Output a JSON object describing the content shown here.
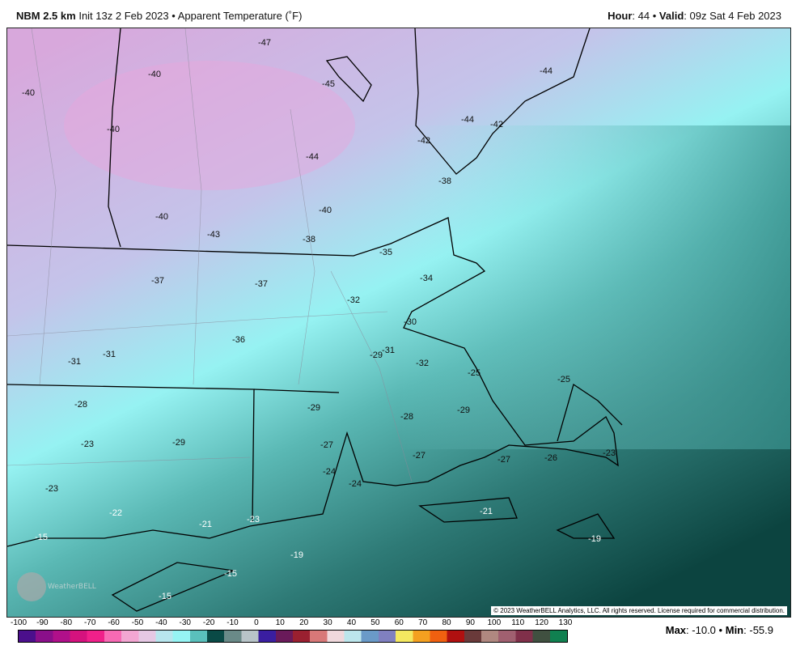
{
  "header": {
    "model": "NBM 2.5 km",
    "init": "Init 13z 2 Feb 2023",
    "sep": "•",
    "field": "Apparent Temperature (˚F)",
    "hour_label": "Hour",
    "hour": "44",
    "valid_label": "Valid",
    "valid": "09z Sat 4 Feb 2023"
  },
  "map": {
    "labels": [
      "-47",
      "-40",
      "-45",
      "-44",
      "-40",
      "-40",
      "-44",
      "-42",
      "-42",
      "-44",
      "-38",
      "-40",
      "-40",
      "-43",
      "-38",
      "-35",
      "-37",
      "-37",
      "-34",
      "-32",
      "-30",
      "-36",
      "-31",
      "-31",
      "-29",
      "-31",
      "-32",
      "-25",
      "-25",
      "-28",
      "-29",
      "-29",
      "-28",
      "-23",
      "-29",
      "-27",
      "-27",
      "-27",
      "-26",
      "-23",
      "-24",
      "-24",
      "-23",
      "-22",
      "-21",
      "-21",
      "-23",
      "-15",
      "-19",
      "-19",
      "-15",
      "-15"
    ],
    "copyright": "© 2023 WeatherBELL Analytics, LLC. All rights reserved. License required for commercial distribution.",
    "logo": "WeatherBELL"
  },
  "colorbar": {
    "ticks": [
      "-100",
      "-90",
      "-80",
      "-70",
      "-60",
      "-50",
      "-40",
      "-30",
      "-20",
      "-10",
      "0",
      "10",
      "20",
      "30",
      "40",
      "50",
      "60",
      "70",
      "80",
      "90",
      "100",
      "110",
      "120",
      "130"
    ],
    "colors": [
      "#4b0f8c",
      "#8a0f8a",
      "#b0108a",
      "#d5127e",
      "#f0208a",
      "#f76ab4",
      "#f3a6d2",
      "#e6c8e4",
      "#b8e6ee",
      "#96f4f4",
      "#5ac0bc",
      "#0a4a46",
      "#6a8a88",
      "#b8c4c8",
      "#3a1ea0",
      "#6a1a5a",
      "#9a2030",
      "#d87878",
      "#f0d8dc",
      "#bce6ec",
      "#6a9ac8",
      "#8080c0",
      "#f4e860",
      "#f4a020",
      "#f06010",
      "#b01010",
      "#6a3a3a",
      "#b08880",
      "#a06070",
      "#80304a",
      "#405040",
      "#108050"
    ]
  },
  "stats": {
    "max_label": "Max",
    "max": "-10.0",
    "min_label": "Min",
    "min": "-55.9"
  }
}
